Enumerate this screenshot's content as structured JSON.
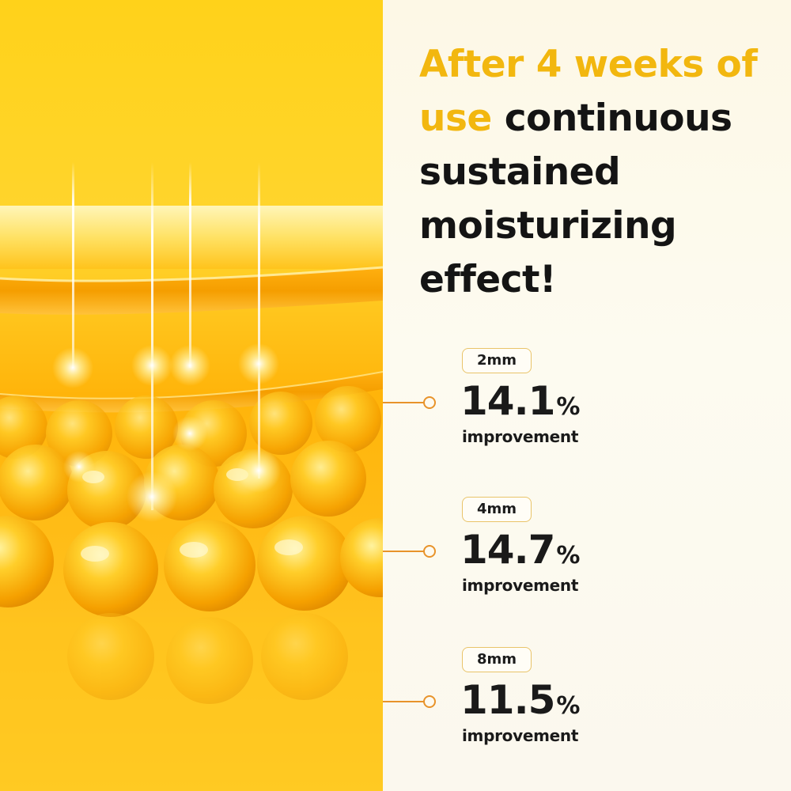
{
  "headline": {
    "accent": "After 4 weeks of use",
    "rest": "continuous sustained moisturizing effect!"
  },
  "stats": [
    {
      "depth": "2mm",
      "value": "14.1",
      "unit": "%",
      "caption": "improvement"
    },
    {
      "depth": "4mm",
      "value": "14.7",
      "unit": "%",
      "caption": "improvement"
    },
    {
      "depth": "8mm",
      "value": "11.5",
      "unit": "%",
      "caption": "improvement"
    }
  ],
  "colors": {
    "accent_yellow": "#f2b70f",
    "connector_orange": "#e8932a",
    "text_dark": "#141414",
    "panel_cream": "#fdf8e6"
  }
}
